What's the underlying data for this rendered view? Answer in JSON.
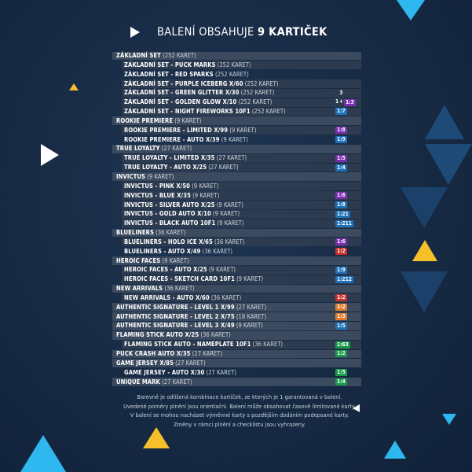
{
  "header": {
    "title_prefix": "BALENÍ OBSAHUJE ",
    "title_bold": "9 KARTIČEK"
  },
  "rows": [
    {
      "type": "sec",
      "name": "ZÁKLADNÍ SET",
      "note": "(252 KARET)"
    },
    {
      "type": "sub",
      "name": "ZÁKLADNÍ SET - PUCK MARKS",
      "note": "(252 KARET)"
    },
    {
      "type": "sub",
      "name": "ZÁKLADNÍ SET - RED SPARKS",
      "note": "(252 KARET)",
      "alt": true
    },
    {
      "type": "sub",
      "name": "ZÁKLADNÍ SET - PURPLE ICEBERG X/60",
      "note": "(252 KARET)"
    },
    {
      "type": "sub",
      "name": "ZÁKLADNÍ SET - GREEN GLITTER X/30",
      "note": "(252 KARET)",
      "badge": "3",
      "color": "plain"
    },
    {
      "type": "sub",
      "name": "ZÁKLADNÍ SET - GOLDEN GLOW X/10",
      "note": "(252 KARET)",
      "dual": {
        "a": "1",
        "plus": "+",
        "b": "1:3"
      }
    },
    {
      "type": "sub",
      "name": "ZÁKLADNÍ SET - NIGHT FIREWORKS 10F1",
      "note": "(252 KARET)",
      "badge": "1:7",
      "color": "blue"
    },
    {
      "type": "sec",
      "name": "ROOKIE PREMIERE",
      "note": "(9 KARET)"
    },
    {
      "type": "sub",
      "name": "ROOKIE PREMIERE - LIMITED X/99",
      "note": "(9 KARET)",
      "badge": "1:8",
      "color": "purple"
    },
    {
      "type": "sub",
      "name": "ROOKIE PREMIERE - AUTO X/39",
      "note": "(9 KARET)",
      "badge": "1:9",
      "color": "blue",
      "alt": true
    },
    {
      "type": "sec",
      "name": "TRUE LOYALTY",
      "note": "(27 KARET)"
    },
    {
      "type": "sub",
      "name": "TRUE LOYALTY - LIMITED X/35",
      "note": "(27 KARET)",
      "badge": "1:5",
      "color": "purple"
    },
    {
      "type": "sub",
      "name": "TRUE LOYALTY - AUTO X/25",
      "note": "(27 KARET)",
      "badge": "1:4",
      "color": "blue"
    },
    {
      "type": "sec",
      "name": "INVICTUS",
      "note": "(9 KARET)"
    },
    {
      "type": "sub",
      "name": "INVICTUS - PINK X/50",
      "note": "(9 KARET)"
    },
    {
      "type": "sub",
      "name": "INVICTUS - BLUE X/35",
      "note": "(9 KARET)",
      "badge": "1:6",
      "color": "purple"
    },
    {
      "type": "sub",
      "name": "INVICTUS - SILVER AUTO X/25",
      "note": "(9 KARET)",
      "badge": "1:8",
      "color": "blue"
    },
    {
      "type": "sub",
      "name": "INVICTUS - GOLD AUTO X/10",
      "note": "(9 KARET)",
      "badge": "1:21",
      "color": "blue"
    },
    {
      "type": "sub",
      "name": "INVICTUS - BLACK AUTO 10F1",
      "note": "(9 KARET)",
      "badge": "1:211",
      "color": "blue"
    },
    {
      "type": "sec",
      "name": "BLUELINERS",
      "note": "(36 KARET)"
    },
    {
      "type": "sub",
      "name": "BLUELINERS - HOLO ICE X/65",
      "note": "(36 KARET)",
      "badge": "1:6",
      "color": "purple"
    },
    {
      "type": "sub",
      "name": "BLUELINERS - AUTO X/49",
      "note": "(36 KARET)",
      "badge": "1:2",
      "color": "red",
      "alt": true
    },
    {
      "type": "sec",
      "name": "HEROIC FACES",
      "note": "(9 KARET)"
    },
    {
      "type": "sub",
      "name": "HEROIC FACES - AUTO X/25",
      "note": "(9 KARET)",
      "badge": "1:9",
      "color": "blue"
    },
    {
      "type": "sub",
      "name": "HEROIC FACES - SKETCH CARD 10F1",
      "note": "(9 KARET)",
      "badge": "1:212",
      "color": "blue"
    },
    {
      "type": "sec",
      "name": "NEW ARRIVALS",
      "note": "(36 KARET)"
    },
    {
      "type": "sub",
      "name": "NEW ARRIVALS - AUTO X/60",
      "note": "(36 KARET)",
      "badge": "1:2",
      "color": "red"
    },
    {
      "type": "sec",
      "name": "AUTHENTIC  SIGNATURE - LEVEL 1 X/99",
      "note": "(27 KARET)",
      "badge": "1:2",
      "color": "orange"
    },
    {
      "type": "sec",
      "name": "AUTHENTIC  SIGNATURE - LEVEL 2 X/75",
      "note": "(18 KARET)",
      "badge": "1:3",
      "color": "orange"
    },
    {
      "type": "sec",
      "name": "AUTHENTIC  SIGNATURE - LEVEL 3 X/49",
      "note": "(9 KARET)",
      "badge": "1:5",
      "color": "blue"
    },
    {
      "type": "sec",
      "name": "FLAMING STICK AUTO X/25",
      "note": "(36 KARET)"
    },
    {
      "type": "sub",
      "name": "FLAMING STICK AUTO - NAMEPLATE 10F1",
      "note": "(36 KARET)",
      "badge": "1:63",
      "color": "green"
    },
    {
      "type": "sec",
      "name": "PUCK CRASH AUTO X/35",
      "note": "(27 KARET)",
      "badge": "1:2",
      "color": "green"
    },
    {
      "type": "sec",
      "name": "GAME JERSEY X/85",
      "note": "(27 KARET)"
    },
    {
      "type": "sub",
      "name": "GAME JERSEY - AUTO X/30",
      "note": "(27 KARET)",
      "badge": "1:5",
      "color": "green",
      "alt": true
    },
    {
      "type": "sec",
      "name": "UNIQUE MARK",
      "note": "(27 KARET)",
      "badge": "1:4",
      "color": "green"
    }
  ],
  "footer": [
    "Barevně je odlišená kombinace kartiček, ze kterých je 1 garantovaná v balení.",
    "Uvedené poměry plnění jsou orientační. Balení může obsahovat časově limitované karty.",
    "V balení se mohou nacházet výměnné karty s pozdějším dodáním podepsané karty.",
    "Změny v rámci plnění a checklistu jsou vyhrazeny."
  ],
  "colors": {
    "blue": "#1f72b8",
    "purple": "#7b2fb0",
    "red": "#c7302b",
    "orange": "#e07a2c",
    "green": "#1a9a4a",
    "accent_cyan": "#2fb8f0",
    "accent_yellow": "#f5c02a",
    "deco_navy": "#1e4a78"
  }
}
